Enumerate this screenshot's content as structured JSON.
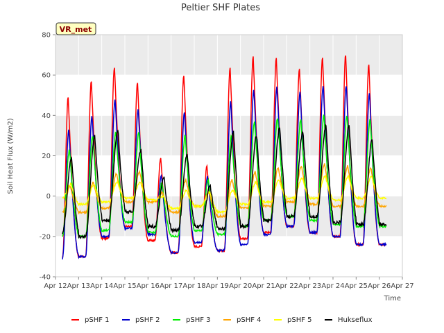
{
  "chart_data": {
    "type": "line",
    "title": "Peltier SHF Plates",
    "xlabel": "Time",
    "ylabel": "Soil Heat Flux (W/m2)",
    "ylim": [
      -40,
      80
    ],
    "yticks": [
      -40,
      -20,
      0,
      20,
      40,
      60,
      80
    ],
    "xlim": [
      12,
      27
    ],
    "xtick_labels": [
      "Apr 12",
      "Apr 13",
      "Apr 14",
      "Apr 15",
      "Apr 16",
      "Apr 17",
      "Apr 18",
      "Apr 19",
      "Apr 20",
      "Apr 21",
      "Apr 22",
      "Apr 23",
      "Apr 24",
      "Apr 25",
      "Apr 26",
      "Apr 27"
    ],
    "grid": true,
    "legend_position": "bottom",
    "annotation": "VR_met",
    "x_start_day": 12.3,
    "x_end_day": 26.3,
    "series": [
      {
        "name": "pSHF 1",
        "color": "#ff0000",
        "peaks": [
          49,
          57,
          64,
          56,
          19,
          60,
          15,
          64,
          69,
          68,
          63,
          69,
          70,
          65
        ],
        "troughs": [
          -31,
          -30,
          -21,
          -15,
          -22,
          -28,
          -25,
          -27,
          -21,
          -18,
          -15,
          -18,
          -20,
          -24
        ]
      },
      {
        "name": "pSHF 2",
        "color": "#0000cc",
        "peaks": [
          33,
          40,
          48,
          43,
          10,
          42,
          10,
          47,
          53,
          54,
          52,
          55,
          55,
          51
        ],
        "troughs": [
          -31,
          -30,
          -20,
          -16,
          -19,
          -28,
          -23,
          -27,
          -24,
          -19,
          -15,
          -18,
          -20,
          -24
        ]
      },
      {
        "name": "pSHF 3",
        "color": "#00ee00",
        "peaks": [
          23,
          30,
          32,
          32,
          7,
          30,
          8,
          30,
          37,
          39,
          38,
          40,
          40,
          38
        ],
        "troughs": [
          -20,
          -20,
          -17,
          -13,
          -18,
          -20,
          -17,
          -19,
          -15,
          -12,
          -10,
          -12,
          -14,
          -15
        ]
      },
      {
        "name": "pSHF 4",
        "color": "#ffa500",
        "peaks": [
          5,
          7,
          11,
          12,
          2,
          8,
          2,
          8,
          12,
          14,
          15,
          16,
          15,
          14
        ],
        "troughs": [
          -8,
          -8,
          -6,
          -3,
          -3,
          -8,
          -5,
          -10,
          -6,
          -5,
          -3,
          -4,
          -5,
          -5
        ]
      },
      {
        "name": "pSHF 5",
        "color": "#ffff00",
        "peaks": [
          6,
          6,
          7,
          7,
          0,
          3,
          2,
          3,
          7,
          8,
          9,
          10,
          10,
          10
        ],
        "troughs": [
          -1,
          -4,
          -3,
          -1,
          -2,
          -6,
          -5,
          -8,
          -4,
          -3,
          -1,
          -1,
          -2,
          -1
        ]
      },
      {
        "name": "Hukseflux",
        "color": "#000000",
        "peaks": [
          19,
          30,
          33,
          23,
          9,
          21,
          5,
          32,
          30,
          34,
          32,
          35,
          35,
          28
        ],
        "troughs": [
          -18,
          -20,
          -12,
          -8,
          -15,
          -17,
          -15,
          -16,
          -15,
          -12,
          -10,
          -10,
          -13,
          -14
        ]
      }
    ]
  }
}
